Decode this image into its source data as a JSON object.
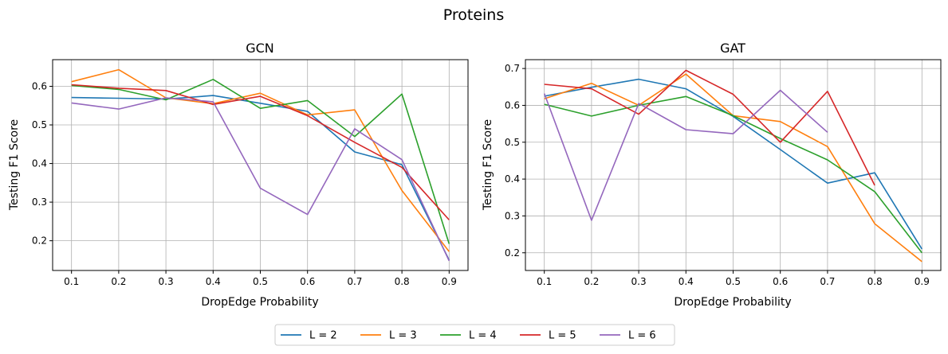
{
  "figure": {
    "title": "Proteins"
  },
  "legend": [
    {
      "label": "L = 2",
      "color": "#1f77b4"
    },
    {
      "label": "L = 3",
      "color": "#ff7f0e"
    },
    {
      "label": "L = 4",
      "color": "#2ca02c"
    },
    {
      "label": "L = 5",
      "color": "#d62728"
    },
    {
      "label": "L = 6",
      "color": "#9467bd"
    }
  ],
  "chart_data": [
    {
      "type": "line",
      "title": "GCN",
      "xlabel": "DropEdge Probability",
      "ylabel": "Testing F1 Score",
      "x": [
        0.1,
        0.2,
        0.3,
        0.4,
        0.5,
        0.6,
        0.7,
        0.8,
        0.9
      ],
      "xticks": [
        "0.1",
        "0.2",
        "0.3",
        "0.4",
        "0.5",
        "0.6",
        "0.7",
        "0.8",
        "0.9"
      ],
      "xlim": [
        0.06,
        0.94
      ],
      "yticks": [
        "0.2",
        "0.3",
        "0.4",
        "0.5",
        "0.6"
      ],
      "ytick_values": [
        0.2,
        0.3,
        0.4,
        0.5,
        0.6
      ],
      "ylim": [
        0.123,
        0.669
      ],
      "grid": true,
      "series": [
        {
          "name": "L = 2",
          "color": "#1f77b4",
          "values": [
            0.571,
            0.569,
            0.567,
            0.576,
            0.556,
            0.535,
            0.43,
            0.397,
            0.15
          ]
        },
        {
          "name": "L = 3",
          "color": "#ff7f0e",
          "values": [
            0.612,
            0.643,
            0.57,
            0.555,
            0.582,
            0.526,
            0.539,
            0.33,
            0.172
          ]
        },
        {
          "name": "L = 4",
          "color": "#2ca02c",
          "values": [
            0.602,
            0.592,
            0.565,
            0.618,
            0.543,
            0.563,
            0.47,
            0.58,
            0.192
          ]
        },
        {
          "name": "L = 5",
          "color": "#d62728",
          "values": [
            0.604,
            0.595,
            0.589,
            0.553,
            0.574,
            0.524,
            0.455,
            0.39,
            0.254
          ]
        },
        {
          "name": "L = 6",
          "color": "#9467bd",
          "values": [
            0.557,
            0.541,
            0.57,
            0.56,
            0.336,
            0.268,
            0.49,
            0.41,
            0.148
          ]
        }
      ]
    },
    {
      "type": "line",
      "title": "GAT",
      "xlabel": "DropEdge Probability",
      "ylabel": "Testing F1 Score",
      "x": [
        0.1,
        0.2,
        0.3,
        0.4,
        0.5,
        0.6,
        0.7,
        0.8,
        0.9
      ],
      "xticks": [
        "0.1",
        "0.2",
        "0.3",
        "0.4",
        "0.5",
        "0.6",
        "0.7",
        "0.8",
        "0.9"
      ],
      "xlim": [
        0.06,
        0.94
      ],
      "yticks": [
        "0.2",
        "0.3",
        "0.4",
        "0.5",
        "0.6",
        "0.7"
      ],
      "ytick_values": [
        0.2,
        0.3,
        0.4,
        0.5,
        0.6,
        0.7
      ],
      "ylim": [
        0.152,
        0.724
      ],
      "grid": true,
      "series": [
        {
          "name": "L = 2",
          "color": "#1f77b4",
          "values": [
            0.625,
            0.649,
            0.671,
            0.645,
            0.57,
            0.48,
            0.389,
            0.417,
            0.21
          ]
        },
        {
          "name": "L = 3",
          "color": "#ff7f0e",
          "values": [
            0.618,
            0.66,
            0.6,
            0.685,
            0.572,
            0.556,
            0.488,
            0.279,
            0.176
          ]
        },
        {
          "name": "L = 4",
          "color": "#2ca02c",
          "values": [
            0.603,
            0.571,
            0.6,
            0.624,
            0.572,
            0.51,
            0.452,
            0.366,
            0.2
          ]
        },
        {
          "name": "L = 5",
          "color": "#d62728",
          "values": [
            0.657,
            0.645,
            0.576,
            0.695,
            0.63,
            0.5,
            0.638,
            0.383,
            null
          ]
        },
        {
          "name": "L = 6",
          "color": "#9467bd",
          "values": [
            0.632,
            0.288,
            0.605,
            0.534,
            0.523,
            0.641,
            0.527,
            null,
            null
          ]
        }
      ]
    }
  ]
}
